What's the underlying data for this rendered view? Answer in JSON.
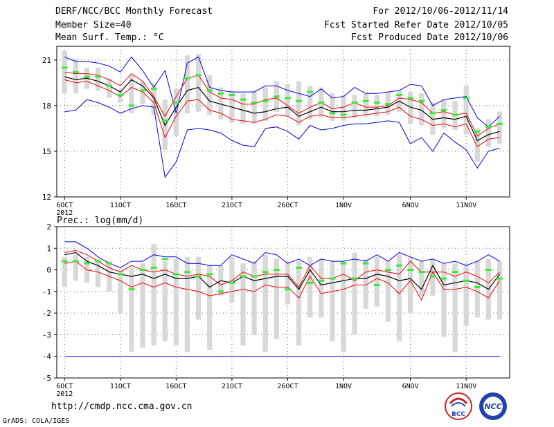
{
  "header": {
    "title": "DERF/NCC/BCC Monthly Forecast",
    "member_size": "Member Size=40",
    "variable": "Mean Surf. Temp.: °C",
    "period": "For 2012/10/06-2012/11/14",
    "fcst_started": "Fcst Started Refer Date 2012/10/05",
    "fcst_produced": "Fcst Produced Date 2012/10/06"
  },
  "footer": {
    "url": "http://cmdp.ncc.cma.gov.cn",
    "grads": "GrADS: COLA/IGES",
    "logo_bcc": "BCC",
    "logo_ncc": "NCC"
  },
  "colors": {
    "max_min": "#0000dd",
    "spread": "#ee0000",
    "mean": "#000000",
    "median": "#33ee33",
    "box": "#d8d8d8"
  },
  "chart_data": [
    {
      "type": "box-line",
      "title": "Mean Surf. Temp.: °C",
      "x": [
        1,
        2,
        3,
        4,
        5,
        6,
        7,
        8,
        9,
        10,
        11,
        12,
        13,
        14,
        15,
        16,
        17,
        18,
        19,
        20,
        21,
        22,
        23,
        24,
        25,
        26,
        27,
        28,
        29,
        30,
        31,
        32,
        33,
        34,
        35,
        36,
        37,
        38,
        39,
        40
      ],
      "xtick_positions": [
        1,
        6,
        11,
        16,
        21,
        26,
        32,
        37,
        42
      ],
      "xtick_labels": [
        "6OCT",
        "11OCT",
        "16OCT",
        "21OCT",
        "26OCT",
        "1NOV",
        "6NOV",
        "11NOV",
        ""
      ],
      "xtick_year": "2012",
      "xlim": [
        0.3,
        40.9
      ],
      "ylim": [
        12,
        21.9
      ],
      "yticks": [
        12,
        15,
        18,
        21
      ],
      "ytick_labels": [
        "12",
        "15",
        "18",
        "21"
      ],
      "series": [
        {
          "name": "max",
          "values": [
            21.2,
            20.9,
            20.9,
            20.8,
            20.6,
            20.2,
            21.2,
            20.3,
            19.2,
            20.3,
            17.5,
            20.8,
            21.2,
            19.2,
            19.0,
            18.9,
            18.9,
            18.9,
            19.3,
            19.3,
            19.0,
            18.8,
            18.6,
            19.1,
            18.5,
            18.6,
            19.2,
            18.8,
            18.8,
            18.9,
            19.0,
            19.4,
            19.3,
            18.0,
            18.4,
            18.5,
            18.6,
            17.2,
            16.6,
            17.3
          ]
        },
        {
          "name": "spread_high",
          "values": [
            20.2,
            20.1,
            20.1,
            20.0,
            19.7,
            19.3,
            20.1,
            19.6,
            18.6,
            17.3,
            18.6,
            19.8,
            20.0,
            18.9,
            18.5,
            18.4,
            18.1,
            18.1,
            18.4,
            18.5,
            18.0,
            17.5,
            17.9,
            18.2,
            17.8,
            17.9,
            18.2,
            17.9,
            17.9,
            18.0,
            18.5,
            18.4,
            18.2,
            17.5,
            17.6,
            17.4,
            17.5,
            16.0,
            16.5,
            16.8
          ]
        },
        {
          "name": "mean",
          "values": [
            19.9,
            19.7,
            19.8,
            19.6,
            19.3,
            18.9,
            19.7,
            19.3,
            18.5,
            16.7,
            17.9,
            19.0,
            19.2,
            18.3,
            18.1,
            17.9,
            17.7,
            17.5,
            17.6,
            17.8,
            17.9,
            17.3,
            17.6,
            17.9,
            17.6,
            17.6,
            17.7,
            17.7,
            17.8,
            17.9,
            18.3,
            17.9,
            17.7,
            17.1,
            17.2,
            17.1,
            17.3,
            15.7,
            16.1,
            16.3
          ]
        },
        {
          "name": "spread_low",
          "values": [
            19.7,
            19.5,
            19.6,
            19.3,
            19.0,
            18.6,
            19.2,
            18.9,
            18.2,
            15.9,
            17.3,
            18.3,
            18.4,
            17.7,
            17.5,
            17.1,
            17.0,
            16.9,
            17.1,
            17.4,
            17.3,
            16.9,
            17.3,
            17.4,
            17.2,
            17.2,
            17.3,
            17.4,
            17.5,
            17.6,
            17.9,
            17.3,
            17.1,
            16.7,
            16.8,
            16.6,
            16.8,
            15.3,
            15.8,
            15.9
          ]
        },
        {
          "name": "min",
          "values": [
            17.6,
            17.7,
            18.4,
            18.2,
            17.9,
            17.5,
            17.8,
            18.0,
            17.9,
            13.3,
            14.3,
            16.4,
            16.5,
            16.4,
            16.2,
            15.7,
            15.4,
            15.3,
            16.5,
            16.6,
            16.3,
            15.8,
            16.7,
            16.4,
            16.5,
            16.7,
            16.8,
            16.8,
            16.9,
            17.0,
            16.9,
            15.5,
            15.9,
            15.0,
            16.2,
            15.6,
            15.1,
            13.9,
            15.0,
            15.2
          ]
        },
        {
          "name": "median",
          "values": [
            20.5,
            20.2,
            19.9,
            19.9,
            19.3,
            18.7,
            18.0,
            19.0,
            19.1,
            17.0,
            18.2,
            19.8,
            20.0,
            19.0,
            18.8,
            18.7,
            18.4,
            18.2,
            18.3,
            18.6,
            18.5,
            18.3,
            18.9,
            18.2,
            17.5,
            17.4,
            18.2,
            18.3,
            18.2,
            18.1,
            18.7,
            18.5,
            18.3,
            17.5,
            17.7,
            17.4,
            18.5,
            16.3,
            16.6,
            16.8
          ]
        },
        {
          "name": "box_high",
          "values": [
            21.6,
            21.1,
            20.5,
            20.5,
            19.8,
            19.1,
            20.0,
            19.6,
            19.5,
            18.4,
            19.1,
            21.3,
            21.4,
            20.0,
            19.2,
            19.0,
            18.8,
            19.0,
            19.2,
            19.6,
            19.4,
            19.6,
            19.3,
            19.2,
            18.8,
            18.7,
            18.7,
            18.8,
            18.7,
            18.9,
            19.0,
            18.9,
            18.8,
            18.2,
            18.4,
            18.3,
            19.3,
            16.5,
            17.1,
            17.6
          ]
        },
        {
          "name": "box_low",
          "values": [
            18.8,
            18.8,
            19.1,
            19.0,
            18.5,
            18.2,
            17.5,
            18.1,
            17.4,
            15.1,
            16.0,
            17.5,
            17.6,
            17.4,
            17.1,
            16.9,
            16.8,
            16.8,
            17.0,
            17.6,
            17.3,
            16.7,
            17.1,
            17.2,
            17.0,
            17.0,
            17.2,
            17.3,
            17.3,
            17.4,
            17.6,
            16.8,
            16.7,
            16.1,
            16.5,
            16.4,
            16.1,
            14.3,
            15.3,
            15.5
          ]
        }
      ]
    },
    {
      "type": "box-line",
      "title": "Prec.: log(mm/d)",
      "x": [
        1,
        2,
        3,
        4,
        5,
        6,
        7,
        8,
        9,
        10,
        11,
        12,
        13,
        14,
        15,
        16,
        17,
        18,
        19,
        20,
        21,
        22,
        23,
        24,
        25,
        26,
        27,
        28,
        29,
        30,
        31,
        32,
        33,
        34,
        35,
        36,
        37,
        38,
        39,
        40
      ],
      "xtick_positions": [
        1,
        6,
        11,
        16,
        21,
        26,
        32,
        37,
        42
      ],
      "xtick_labels": [
        "6OCT",
        "11OCT",
        "16OCT",
        "21OCT",
        "26OCT",
        "1NOV",
        "6NOV",
        "11NOV",
        ""
      ],
      "xtick_year": "2012",
      "xlim": [
        0.3,
        40.9
      ],
      "ylim": [
        -5,
        2
      ],
      "yticks": [
        -5,
        -4,
        -3,
        -2,
        -1,
        0,
        1,
        2
      ],
      "ytick_labels": [
        "-5",
        "-4",
        "-3",
        "-2",
        "-1",
        "0",
        "1",
        "2"
      ],
      "series": [
        {
          "name": "max",
          "values": [
            1.3,
            1.3,
            1.0,
            0.6,
            0.3,
            0.1,
            0.4,
            0.4,
            0.7,
            0.6,
            0.6,
            0.3,
            0.3,
            0.2,
            0.2,
            0.7,
            0.5,
            0.3,
            0.8,
            0.7,
            0.3,
            0.5,
            0.2,
            0.5,
            0.4,
            0.4,
            0.5,
            0.4,
            0.7,
            0.4,
            0.8,
            0.6,
            0.4,
            0.5,
            0.3,
            0.4,
            0.2,
            0.4,
            0.7,
            0.4
          ]
        },
        {
          "name": "spread_high",
          "values": [
            0.8,
            0.9,
            0.7,
            0.4,
            0.1,
            -0.1,
            0.2,
            0.0,
            -0.1,
            0.0,
            -0.2,
            -0.3,
            -0.2,
            -0.3,
            -0.7,
            -0.5,
            -0.1,
            -0.3,
            -0.2,
            -0.2,
            -0.2,
            -0.8,
            0.2,
            -0.4,
            -0.4,
            -0.2,
            -0.5,
            -0.1,
            0.0,
            -0.1,
            -0.2,
            0.4,
            -0.1,
            -0.1,
            -0.1,
            -0.3,
            -0.1,
            -0.3,
            -0.6,
            -0.1
          ]
        },
        {
          "name": "mean",
          "values": [
            0.7,
            0.8,
            0.4,
            0.2,
            -0.1,
            -0.2,
            -0.3,
            -0.2,
            -0.4,
            -0.2,
            -0.4,
            -0.4,
            -0.3,
            -0.8,
            -0.5,
            -0.6,
            -0.3,
            -0.5,
            -0.4,
            -0.3,
            -0.3,
            -0.9,
            0.0,
            -0.7,
            -0.6,
            -0.5,
            -0.4,
            -0.4,
            -0.2,
            -0.3,
            -0.5,
            -0.4,
            -0.9,
            0.2,
            -0.7,
            -0.6,
            -0.5,
            -0.6,
            -0.9,
            -0.2
          ]
        },
        {
          "name": "spread_low",
          "values": [
            0.3,
            0.4,
            0.0,
            -0.1,
            -0.3,
            -0.5,
            -0.8,
            -0.6,
            -0.8,
            -0.6,
            -0.8,
            -0.9,
            -1.0,
            -1.2,
            -1.1,
            -1.0,
            -0.9,
            -1.0,
            -0.7,
            -0.8,
            -0.8,
            -1.3,
            -0.3,
            -1.1,
            -1.0,
            -0.9,
            -0.7,
            -0.7,
            -0.4,
            -0.6,
            -1.1,
            -0.5,
            -1.4,
            -0.1,
            -0.9,
            -0.9,
            -0.8,
            -1.0,
            -1.3,
            -0.5
          ]
        },
        {
          "name": "min",
          "values": [
            -4,
            -4,
            -4,
            -4,
            -4,
            -4,
            -4,
            -4,
            -4,
            -4,
            -4,
            -4,
            -4,
            -4,
            -4,
            -4,
            -4,
            -4,
            -4,
            -4,
            -4,
            -4,
            -4,
            -4,
            -4,
            -4,
            -4,
            -4,
            -4,
            -4,
            -4,
            -4,
            -4,
            -4,
            -4,
            -4,
            -4,
            -4,
            -4,
            -4
          ]
        },
        {
          "name": "median",
          "values": [
            0.4,
            0.4,
            0.3,
            0.4,
            0.3,
            -0.2,
            -0.9,
            0.0,
            0.1,
            0.5,
            -0.2,
            -0.1,
            -0.3,
            -0.2,
            -1.0,
            -0.6,
            -0.3,
            -0.3,
            -0.1,
            0.0,
            -0.9,
            0.1,
            -0.6,
            -0.5,
            -0.4,
            0.3,
            -0.4,
            0.3,
            -0.7,
            0.0,
            0.2,
            0.0,
            -0.1,
            -0.3,
            -0.4,
            -0.1,
            -0.5,
            -0.8,
            0.0,
            -0.4
          ]
        },
        {
          "name": "box_high",
          "values": [
            0.6,
            0.7,
            0.6,
            0.5,
            0.4,
            0.0,
            0.1,
            0.3,
            1.2,
            0.4,
            0.5,
            0.6,
            0.6,
            0.2,
            0.2,
            0.6,
            0.3,
            0.4,
            0.7,
            0.5,
            0.4,
            0.4,
            0.6,
            0.5,
            0.4,
            0.4,
            0.8,
            0.5,
            0.6,
            0.4,
            0.7,
            0.6,
            0.4,
            0.5,
            0.3,
            0.3,
            0.3,
            0.4,
            0.5,
            0.4
          ]
        },
        {
          "name": "box_low",
          "values": [
            -0.8,
            -0.5,
            -0.6,
            -0.8,
            -1.0,
            -2.0,
            -3.8,
            -3.6,
            -3.5,
            -3.3,
            -3.5,
            -3.8,
            -2.3,
            -3.7,
            -1.2,
            -1.5,
            -3.5,
            -3.0,
            -3.8,
            -3.2,
            -1.6,
            -3.5,
            -2.2,
            -2.2,
            -3.3,
            -3.8,
            -3.0,
            -1.8,
            -1.7,
            -2.4,
            -3.3,
            -2.0,
            -1.2,
            -1.2,
            -3.1,
            -3.8,
            -2.6,
            -2.2,
            -2.3,
            -2.3
          ]
        }
      ]
    }
  ]
}
